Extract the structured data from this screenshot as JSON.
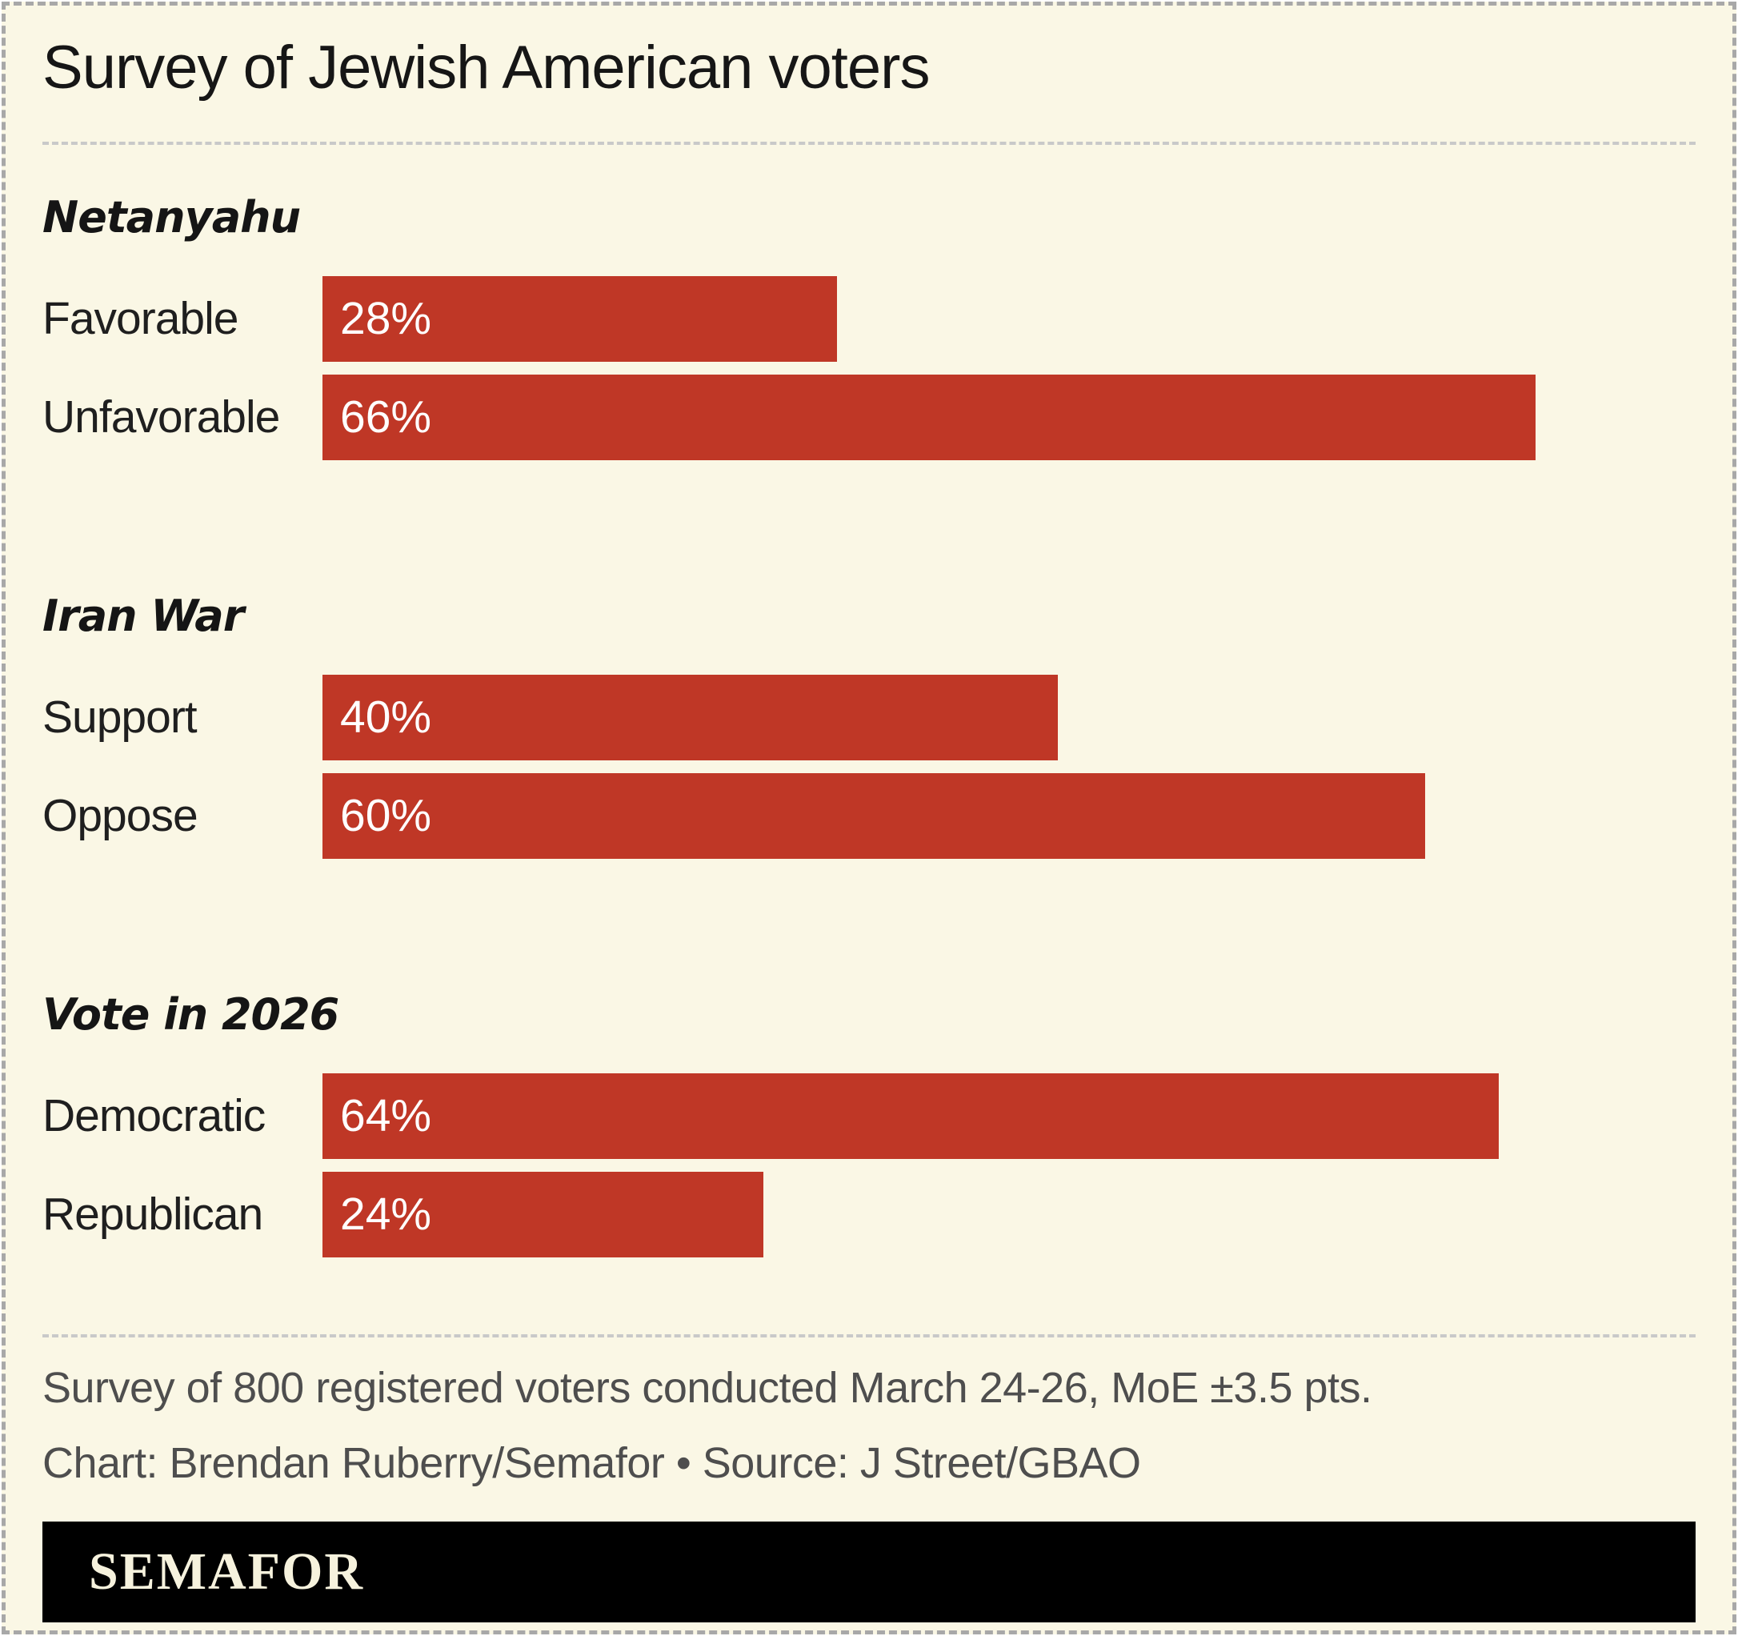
{
  "title": "Survey of Jewish American voters",
  "chart_data": {
    "type": "bar",
    "orientation": "horizontal",
    "title": "Survey of Jewish American voters",
    "unit": "%",
    "xlim": [
      0,
      74.7
    ],
    "grid": false,
    "legend": "none",
    "bar_color": "#BF3726",
    "value_label_color": "#FFFFFF",
    "groups": [
      {
        "header": "Netanyahu",
        "rows": [
          {
            "label": "Favorable",
            "value": 28,
            "display": "28%"
          },
          {
            "label": "Unfavorable",
            "value": 66,
            "display": "66%"
          }
        ]
      },
      {
        "header": "Iran War",
        "rows": [
          {
            "label": "Support",
            "value": 40,
            "display": "40%"
          },
          {
            "label": "Oppose",
            "value": 60,
            "display": "60%"
          }
        ]
      },
      {
        "header": "Vote in 2026",
        "rows": [
          {
            "label": "Democratic",
            "value": 64,
            "display": "64%"
          },
          {
            "label": "Republican",
            "value": 24,
            "display": "24%"
          }
        ]
      }
    ]
  },
  "footer": {
    "note": "Survey of 800 registered voters conducted March 24-26, MoE ±3.5 pts.",
    "credit": "Chart: Brendan Ruberry/Semafor • Source: J Street/GBAO"
  },
  "logo": {
    "text": "SEMAFOR"
  },
  "colors": {
    "background": "#FAF7E5",
    "bar": "#BF3726",
    "text": "#1A1A1A",
    "muted": "#4E4E4E",
    "separator": "#C9C9C9",
    "outer_border": "#A8A8A8",
    "logo_bg": "#000000",
    "logo_text": "#F6F2DD"
  }
}
